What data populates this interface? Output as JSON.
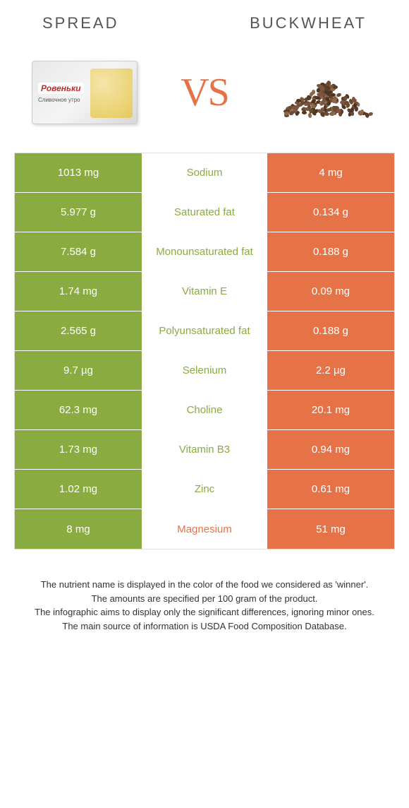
{
  "header": {
    "left": "SPREAD",
    "right": "BUCKWHEAT"
  },
  "vs": "VS",
  "spread_brand": "Ровеньки",
  "spread_sub": "Сливочное утро",
  "colors": {
    "left": "#8aab3f",
    "right": "#e67348",
    "grain": "#6b4a32"
  },
  "rows": [
    {
      "left": "1013 mg",
      "mid": "Sodium",
      "right": "4 mg",
      "winner": "left"
    },
    {
      "left": "5.977 g",
      "mid": "Saturated fat",
      "right": "0.134 g",
      "winner": "left"
    },
    {
      "left": "7.584 g",
      "mid": "Monounsaturated fat",
      "right": "0.188 g",
      "winner": "left"
    },
    {
      "left": "1.74 mg",
      "mid": "Vitamin E",
      "right": "0.09 mg",
      "winner": "left"
    },
    {
      "left": "2.565 g",
      "mid": "Polyunsaturated fat",
      "right": "0.188 g",
      "winner": "left"
    },
    {
      "left": "9.7 µg",
      "mid": "Selenium",
      "right": "2.2 µg",
      "winner": "left"
    },
    {
      "left": "62.3 mg",
      "mid": "Choline",
      "right": "20.1 mg",
      "winner": "left"
    },
    {
      "left": "1.73 mg",
      "mid": "Vitamin B3",
      "right": "0.94 mg",
      "winner": "left"
    },
    {
      "left": "1.02 mg",
      "mid": "Zinc",
      "right": "0.61 mg",
      "winner": "left"
    },
    {
      "left": "8 mg",
      "mid": "Magnesium",
      "right": "51 mg",
      "winner": "right"
    }
  ],
  "footer": [
    "The nutrient name is displayed in the color of the food we considered as 'winner'.",
    "The amounts are specified per 100 gram of the product.",
    "The infographic aims to display only the significant differences, ignoring minor ones.",
    "The main source of information is USDA Food Composition Database."
  ]
}
